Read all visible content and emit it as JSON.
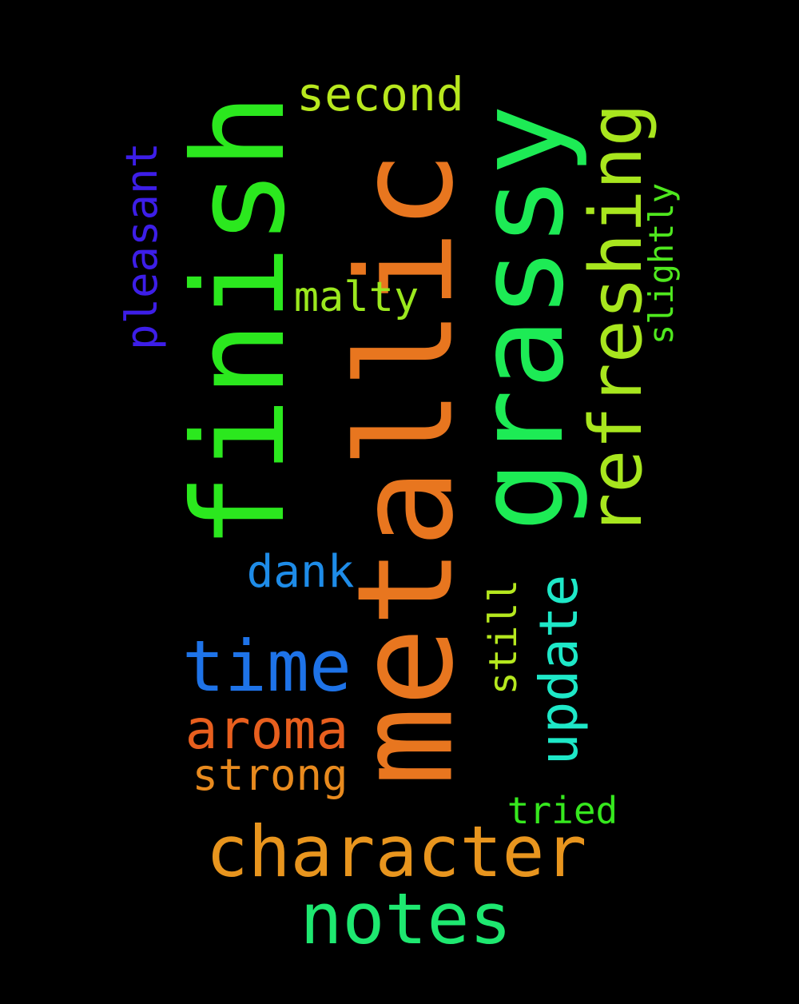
{
  "words": {
    "metallic": {
      "text": "metallic",
      "color": "#E8761F",
      "orientation": "vertical"
    },
    "finish": {
      "text": "finish",
      "color": "#2BE81E",
      "orientation": "vertical"
    },
    "grassy": {
      "text": "grassy",
      "color": "#1DEB55",
      "orientation": "vertical"
    },
    "refreshing": {
      "text": "refreshing",
      "color": "#A8E61E",
      "orientation": "vertical"
    },
    "character": {
      "text": "character",
      "color": "#E8951E",
      "orientation": "horizontal"
    },
    "notes": {
      "text": "notes",
      "color": "#1EE870",
      "orientation": "horizontal"
    },
    "time": {
      "text": "time",
      "color": "#1E73E8",
      "orientation": "horizontal"
    },
    "aroma": {
      "text": "aroma",
      "color": "#E85F1E",
      "orientation": "horizontal"
    },
    "update": {
      "text": "update",
      "color": "#1EE8C8",
      "orientation": "vertical"
    },
    "pleasant": {
      "text": "pleasant",
      "color": "#3D1EE8",
      "orientation": "vertical"
    },
    "second": {
      "text": "second",
      "color": "#B8E81E",
      "orientation": "horizontal"
    },
    "dank": {
      "text": "dank",
      "color": "#1E8CE8",
      "orientation": "horizontal"
    },
    "strong": {
      "text": "strong",
      "color": "#E88A1E",
      "orientation": "horizontal"
    },
    "malty": {
      "text": "malty",
      "color": "#9BE81E",
      "orientation": "horizontal"
    },
    "still": {
      "text": "still",
      "color": "#B5E81E",
      "orientation": "vertical"
    },
    "slightly": {
      "text": "slightly",
      "color": "#4FE81E",
      "orientation": "vertical"
    },
    "tried": {
      "text": "tried",
      "color": "#36E81E",
      "orientation": "horizontal"
    }
  }
}
